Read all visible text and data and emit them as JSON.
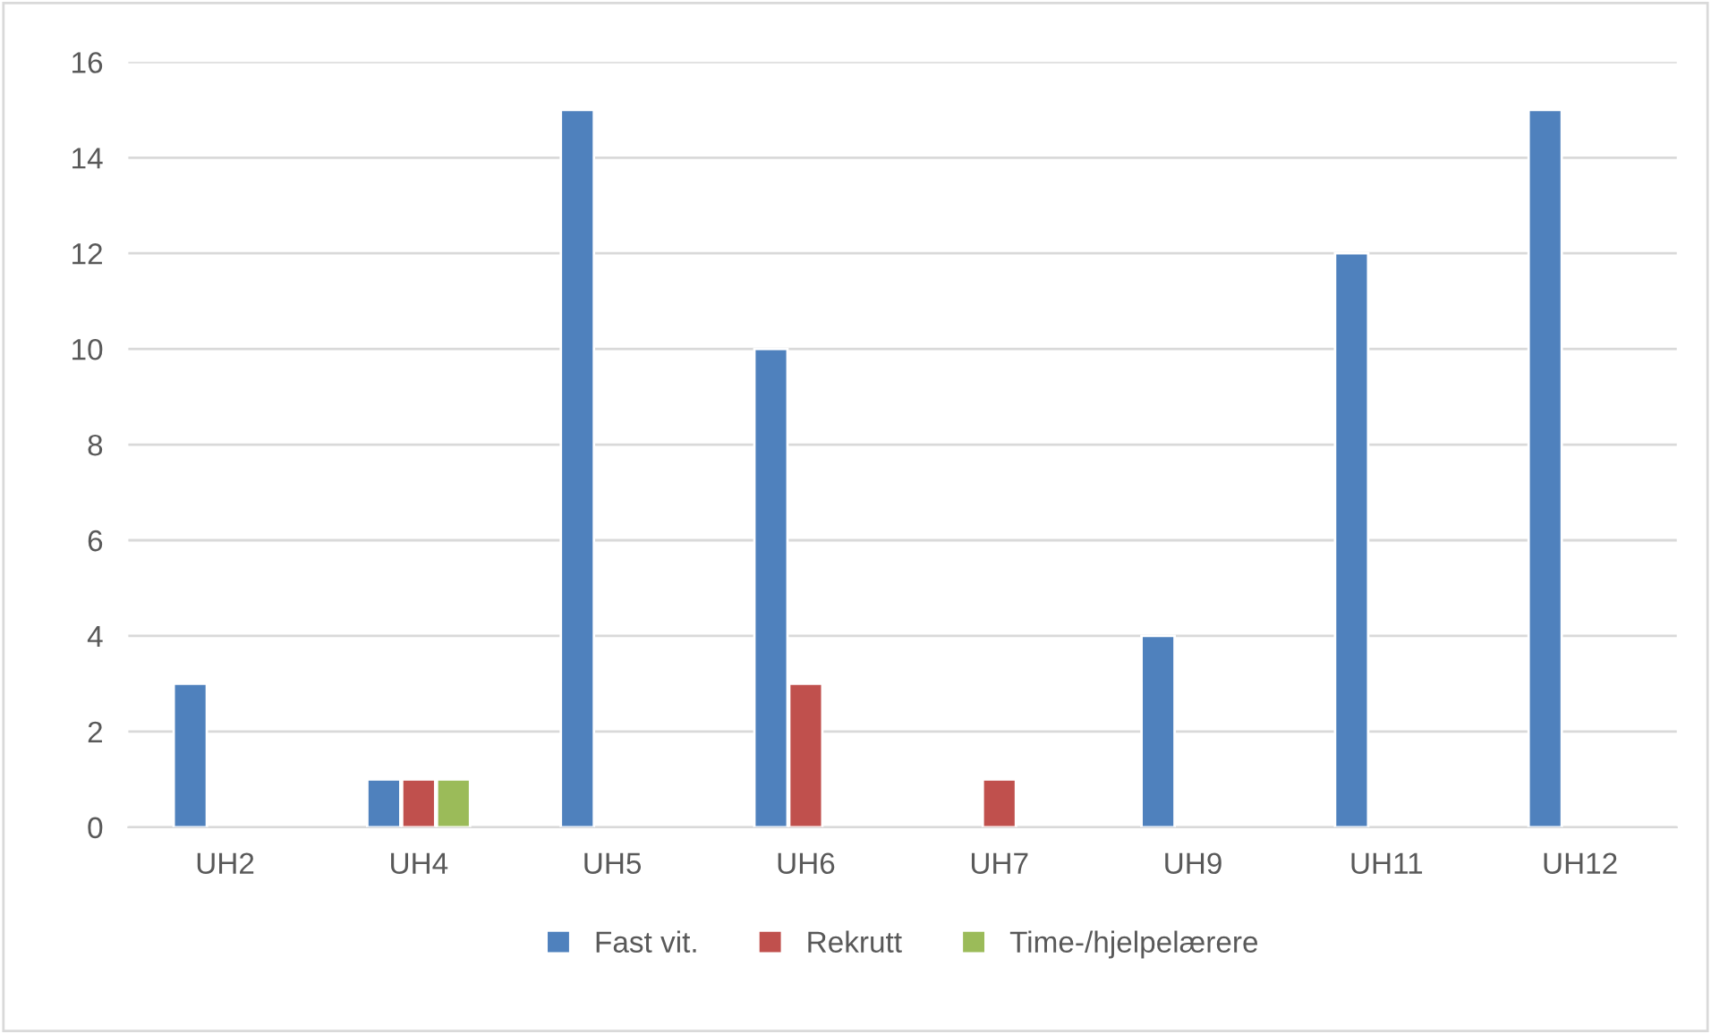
{
  "chart_data": {
    "type": "bar",
    "categories": [
      "UH2",
      "UH4",
      "UH5",
      "UH6",
      "UH7",
      "UH9",
      "UH11",
      "UH12"
    ],
    "series": [
      {
        "name": "Fast vit.",
        "color": "#4f81bd",
        "values": [
          3,
          1,
          15,
          10,
          null,
          4,
          12,
          15
        ]
      },
      {
        "name": "Rekrutt",
        "color": "#c0504d",
        "values": [
          null,
          1,
          null,
          3,
          1,
          null,
          null,
          null
        ]
      },
      {
        "name": "Time-/hjelpelærere",
        "color": "#9bbb59",
        "values": [
          null,
          1,
          null,
          null,
          null,
          null,
          null,
          null
        ]
      }
    ],
    "ylim": [
      0,
      16
    ],
    "yticks": [
      0,
      2,
      4,
      6,
      8,
      10,
      12,
      14,
      16
    ],
    "grid": "y",
    "legend": "bottom"
  }
}
